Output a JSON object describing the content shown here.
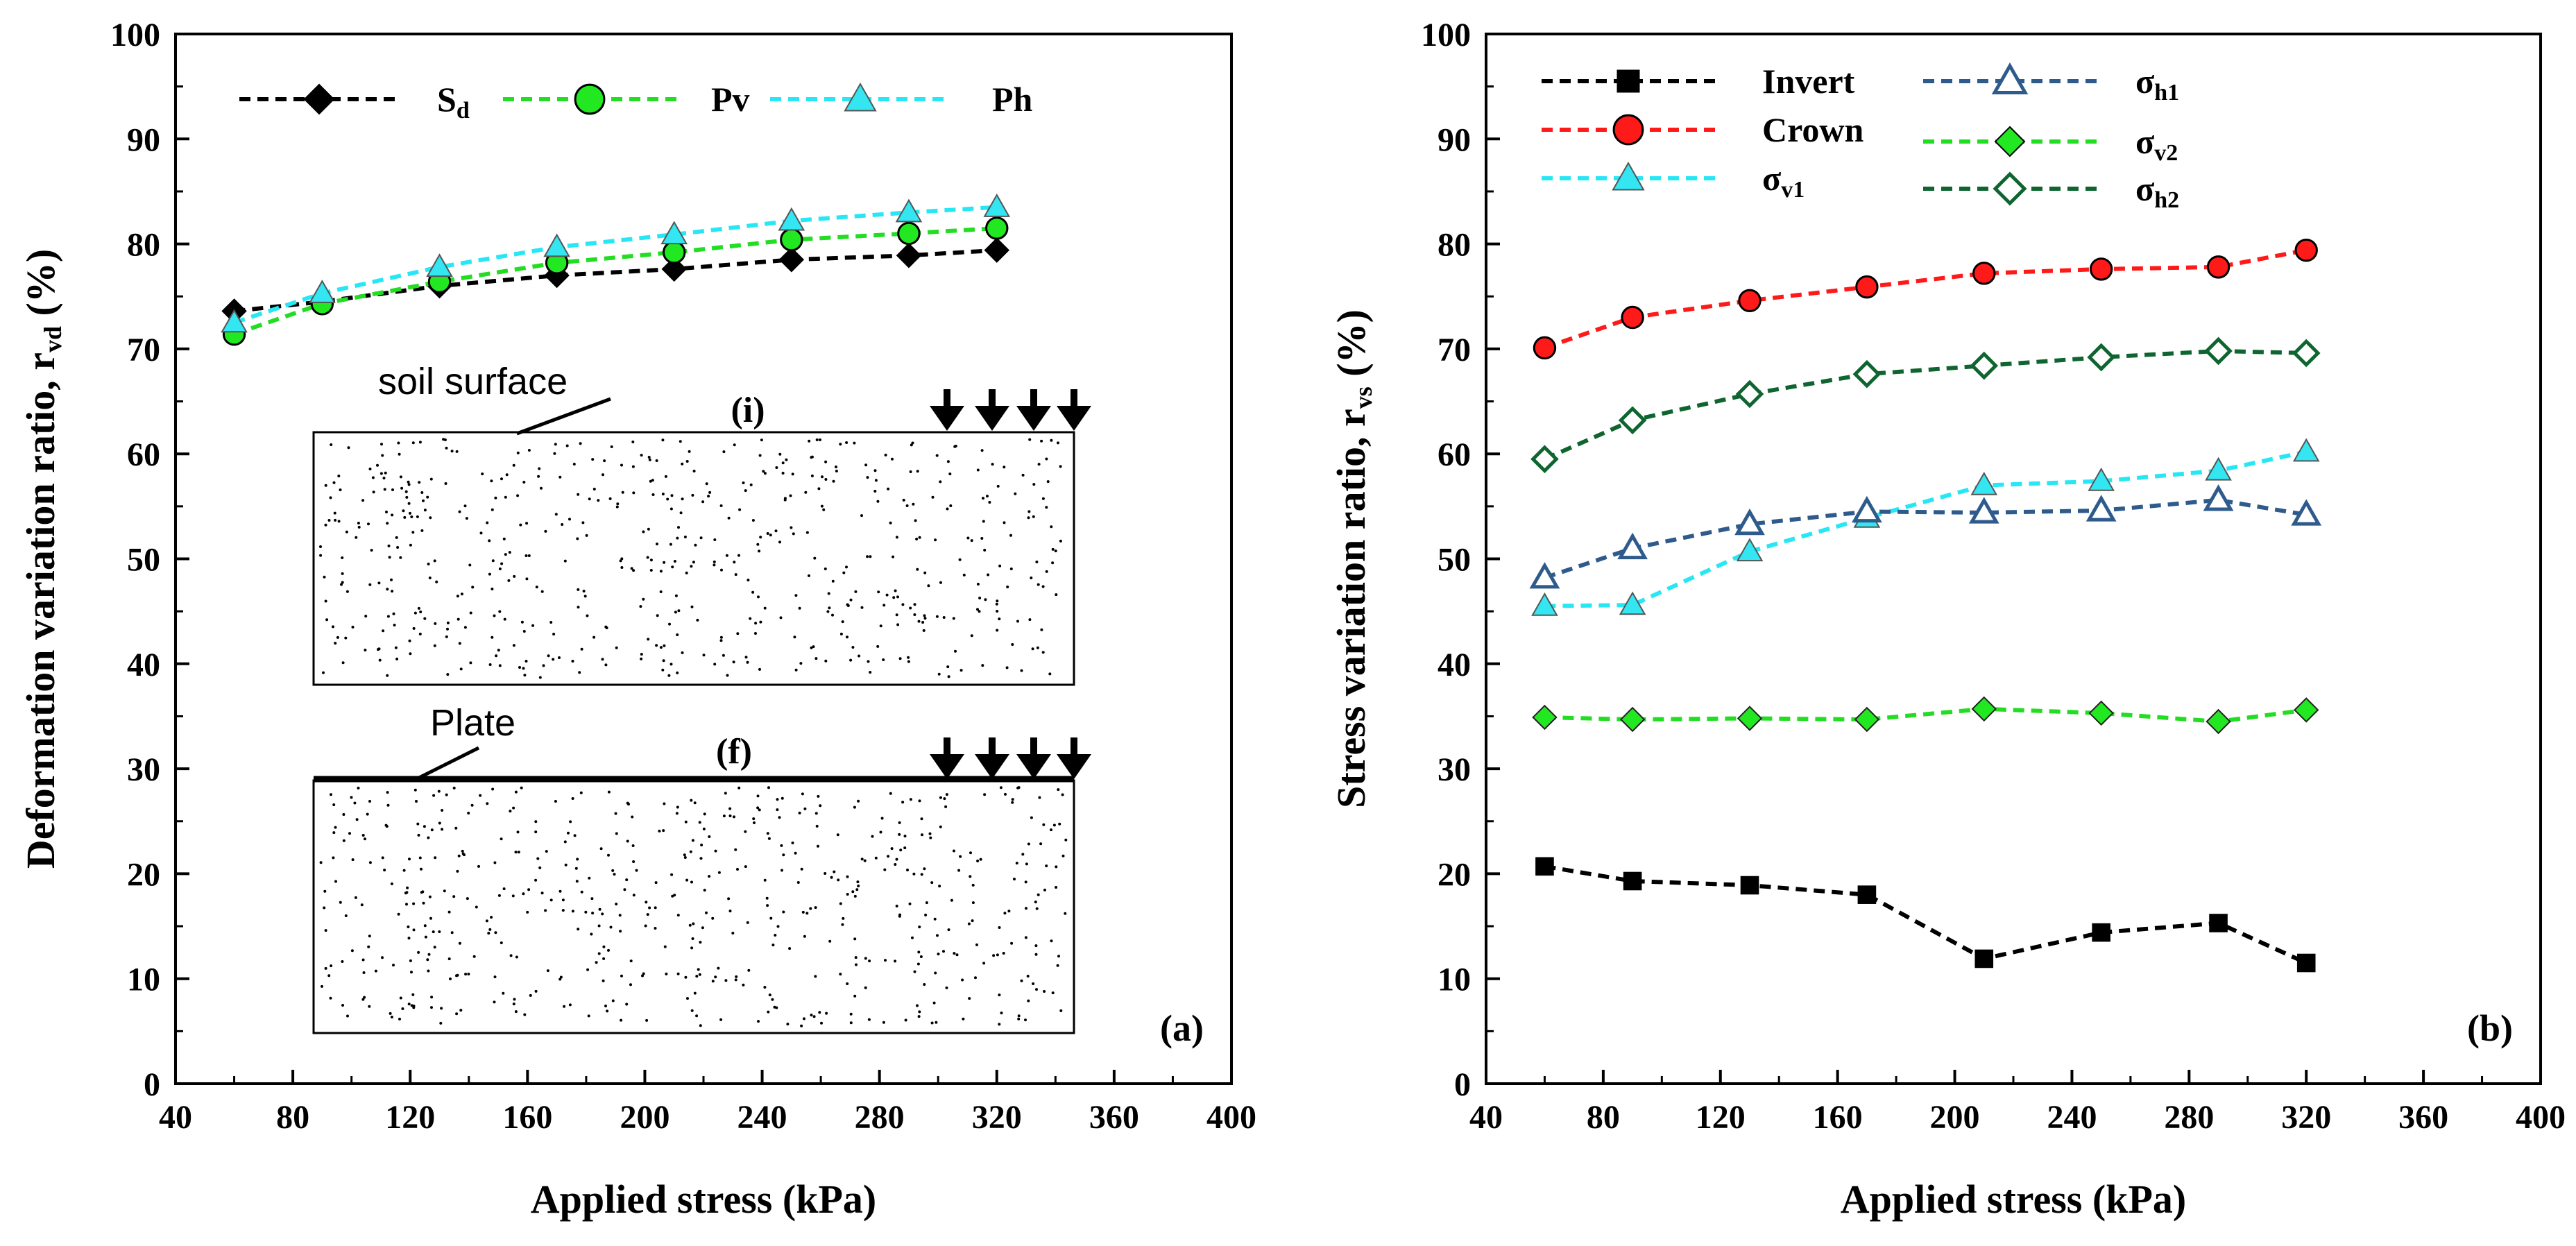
{
  "colors": {
    "black": "#000000",
    "red": "#ff1a1a",
    "green": "#22dd22",
    "green_fill": "#22e822",
    "cyan": "#27e7f5",
    "cyan_fill": "#33e6f2",
    "steel_blue": "#2f5b8c",
    "dark_green": "#0f6530"
  },
  "chart_data": [
    {
      "id": "a",
      "type": "line",
      "panel_label": "(a)",
      "xlabel": "Applied stress (kPa)",
      "ylabel_main": "Deformation variation ratio, r",
      "ylabel_sub": "vd",
      "ylabel_tail": " (%)",
      "xlim": [
        40,
        400
      ],
      "ylim": [
        0,
        100
      ],
      "xticks": [
        "40",
        "80",
        "120",
        "160",
        "200",
        "240",
        "280",
        "320",
        "360",
        "400"
      ],
      "yticks": [
        "0",
        "10",
        "20",
        "30",
        "40",
        "50",
        "60",
        "70",
        "80",
        "90",
        "100"
      ],
      "x": [
        60,
        90,
        130,
        170,
        210,
        250,
        290,
        320
      ],
      "legend_position": "top",
      "series": [
        {
          "key": "sd",
          "label_main": "S",
          "label_sub": "d",
          "marker": "diamond",
          "color": "black",
          "fill": "black",
          "values": [
            73.6,
            74.5,
            76.0,
            77.0,
            77.6,
            78.5,
            78.9,
            79.4
          ]
        },
        {
          "key": "pv",
          "label_main": "Pv",
          "label_sub": "",
          "marker": "circle",
          "color": "green",
          "fill": "green_fill",
          "values": [
            71.4,
            74.3,
            76.4,
            78.2,
            79.2,
            80.4,
            81.0,
            81.5
          ]
        },
        {
          "key": "ph",
          "label_main": "Ph",
          "label_sub": "",
          "marker": "triangle",
          "color": "cyan",
          "fill": "cyan_fill",
          "values": [
            72.5,
            75.3,
            77.8,
            79.7,
            80.9,
            82.2,
            83.0,
            83.5
          ]
        }
      ],
      "insets": {
        "top_label": "(i)",
        "top_note": "soil surface",
        "bottom_label": "(f)",
        "bottom_note": "Plate"
      }
    },
    {
      "id": "b",
      "type": "line",
      "panel_label": "(b)",
      "xlabel": "Applied stress (kPa)",
      "ylabel_main": "Stress variation ratio, r",
      "ylabel_sub": "vs",
      "ylabel_tail": " (%)",
      "xlim": [
        40,
        400
      ],
      "ylim": [
        0,
        100
      ],
      "xticks": [
        "40",
        "80",
        "120",
        "160",
        "200",
        "240",
        "280",
        "320",
        "360",
        "400"
      ],
      "yticks": [
        "0",
        "10",
        "20",
        "30",
        "40",
        "50",
        "60",
        "70",
        "80",
        "90",
        "100"
      ],
      "x": [
        60,
        90,
        130,
        170,
        210,
        250,
        290,
        320
      ],
      "legend_position": "top-left",
      "series": [
        {
          "key": "invert",
          "label_main": "Invert",
          "label_sub": "",
          "marker": "square",
          "color": "black",
          "fill": "black",
          "values": [
            20.7,
            19.3,
            18.9,
            18.0,
            11.9,
            14.4,
            15.3,
            11.5
          ]
        },
        {
          "key": "crown",
          "label_main": "Crown",
          "label_sub": "",
          "marker": "circle",
          "color": "red",
          "fill": "red",
          "values": [
            70.1,
            73.0,
            74.6,
            75.9,
            77.2,
            77.6,
            77.8,
            79.4
          ]
        },
        {
          "key": "sv1",
          "label_main": "σ",
          "label_sub": "v1",
          "marker": "triangle",
          "color": "cyan",
          "fill": "cyan_fill",
          "values": [
            45.5,
            45.6,
            50.7,
            53.9,
            57.0,
            57.4,
            58.4,
            60.2
          ]
        },
        {
          "key": "sh1",
          "label_main": "σ",
          "label_sub": "h1",
          "marker": "triangle-open",
          "color": "steel_blue",
          "fill": "none",
          "values": [
            48.2,
            51.0,
            53.3,
            54.5,
            54.4,
            54.6,
            55.6,
            54.2
          ]
        },
        {
          "key": "sv2",
          "label_main": "σ",
          "label_sub": "v2",
          "marker": "diamond",
          "color": "green",
          "fill": "green_fill",
          "values": [
            34.9,
            34.7,
            34.8,
            34.7,
            35.7,
            35.3,
            34.5,
            35.6
          ]
        },
        {
          "key": "sh2",
          "label_main": "σ",
          "label_sub": "h2",
          "marker": "diamond-open",
          "color": "dark_green",
          "fill": "none",
          "values": [
            59.5,
            63.2,
            65.7,
            67.6,
            68.4,
            69.2,
            69.8,
            69.6
          ]
        }
      ]
    }
  ]
}
